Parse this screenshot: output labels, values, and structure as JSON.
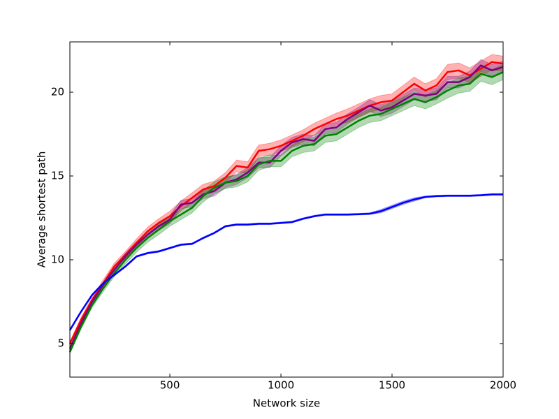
{
  "chart_data": {
    "type": "line",
    "x_label": "Network size",
    "y_label": "Average shortest path",
    "x": [
      50,
      100,
      150,
      200,
      250,
      300,
      350,
      400,
      450,
      500,
      550,
      600,
      650,
      700,
      750,
      800,
      850,
      900,
      950,
      1000,
      1050,
      1100,
      1150,
      1200,
      1250,
      1300,
      1350,
      1400,
      1450,
      1500,
      1550,
      1600,
      1650,
      1700,
      1750,
      1800,
      1850,
      1900,
      1950,
      2000
    ],
    "xlim": [
      50,
      2000
    ],
    "xticks": [
      500,
      1000,
      1500,
      2000
    ],
    "ylim": [
      3,
      23
    ],
    "yticks": [
      5,
      10,
      15,
      20
    ],
    "series": [
      {
        "color": "#ff0000",
        "values": [
          5.0,
          6.4,
          7.6,
          8.6,
          9.6,
          10.3,
          11.0,
          11.7,
          12.2,
          12.6,
          13.2,
          13.7,
          14.2,
          14.4,
          14.9,
          15.6,
          15.5,
          16.5,
          16.6,
          16.8,
          17.1,
          17.4,
          17.8,
          18.1,
          18.4,
          18.6,
          18.9,
          19.2,
          19.4,
          19.5,
          20.0,
          20.5,
          20.1,
          20.4,
          21.2,
          21.3,
          21.0,
          21.4,
          21.8,
          21.7
        ],
        "err": [
          0.1,
          0.15,
          0.15,
          0.2,
          0.2,
          0.2,
          0.25,
          0.25,
          0.25,
          0.3,
          0.3,
          0.3,
          0.3,
          0.3,
          0.3,
          0.35,
          0.35,
          0.35,
          0.35,
          0.35,
          0.35,
          0.35,
          0.35,
          0.35,
          0.35,
          0.4,
          0.4,
          0.4,
          0.4,
          0.4,
          0.4,
          0.4,
          0.4,
          0.4,
          0.45,
          0.45,
          0.45,
          0.45,
          0.45,
          0.45
        ]
      },
      {
        "color": "#800080",
        "values": [
          4.7,
          6.2,
          7.5,
          8.5,
          9.4,
          10.2,
          10.9,
          11.5,
          12.0,
          12.4,
          13.3,
          13.4,
          13.9,
          14.1,
          14.6,
          14.8,
          15.2,
          15.8,
          15.8,
          16.5,
          17.0,
          17.2,
          17.1,
          17.8,
          17.9,
          18.4,
          18.8,
          19.2,
          18.9,
          19.1,
          19.5,
          19.9,
          19.8,
          19.9,
          20.6,
          20.6,
          20.9,
          21.6,
          21.3,
          21.5
        ],
        "err": [
          0.1,
          0.1,
          0.15,
          0.15,
          0.2,
          0.2,
          0.2,
          0.2,
          0.25,
          0.25,
          0.25,
          0.25,
          0.25,
          0.3,
          0.3,
          0.3,
          0.3,
          0.3,
          0.3,
          0.3,
          0.3,
          0.3,
          0.3,
          0.3,
          0.3,
          0.3,
          0.3,
          0.35,
          0.35,
          0.35,
          0.35,
          0.35,
          0.35,
          0.35,
          0.35,
          0.35,
          0.35,
          0.35,
          0.35,
          0.35
        ]
      },
      {
        "color": "#008000",
        "values": [
          4.5,
          6.0,
          7.3,
          8.3,
          9.2,
          10.0,
          10.7,
          11.3,
          11.8,
          12.3,
          12.7,
          13.1,
          13.8,
          14.3,
          14.6,
          14.7,
          15.0,
          15.7,
          15.9,
          15.9,
          16.5,
          16.8,
          16.9,
          17.4,
          17.5,
          17.9,
          18.3,
          18.6,
          18.7,
          19.0,
          19.3,
          19.6,
          19.4,
          19.7,
          20.1,
          20.4,
          20.5,
          21.1,
          20.9,
          21.2
        ],
        "err": [
          0.1,
          0.15,
          0.15,
          0.2,
          0.2,
          0.25,
          0.25,
          0.25,
          0.3,
          0.3,
          0.3,
          0.3,
          0.35,
          0.35,
          0.35,
          0.35,
          0.35,
          0.35,
          0.35,
          0.35,
          0.35,
          0.4,
          0.4,
          0.4,
          0.4,
          0.4,
          0.4,
          0.4,
          0.4,
          0.4,
          0.4,
          0.4,
          0.4,
          0.4,
          0.45,
          0.45,
          0.45,
          0.45,
          0.45,
          0.45
        ]
      },
      {
        "color": "#0000ff",
        "values": [
          5.8,
          6.9,
          7.9,
          8.6,
          9.1,
          9.6,
          10.2,
          10.4,
          10.5,
          10.7,
          10.9,
          10.95,
          11.3,
          11.6,
          12.0,
          12.1,
          12.1,
          12.15,
          12.15,
          12.2,
          12.25,
          12.45,
          12.6,
          12.7,
          12.7,
          12.7,
          12.72,
          12.75,
          12.9,
          13.15,
          13.4,
          13.6,
          13.75,
          13.8,
          13.82,
          13.82,
          13.82,
          13.85,
          13.9,
          13.9
        ],
        "err": [
          0.05,
          0.05,
          0.05,
          0.05,
          0.05,
          0.05,
          0.05,
          0.05,
          0.05,
          0.05,
          0.05,
          0.05,
          0.05,
          0.05,
          0.05,
          0.05,
          0.05,
          0.05,
          0.05,
          0.05,
          0.05,
          0.05,
          0.05,
          0.05,
          0.05,
          0.05,
          0.05,
          0.05,
          0.1,
          0.1,
          0.1,
          0.1,
          0.05,
          0.05,
          0.05,
          0.05,
          0.05,
          0.05,
          0.05,
          0.05
        ]
      }
    ]
  }
}
